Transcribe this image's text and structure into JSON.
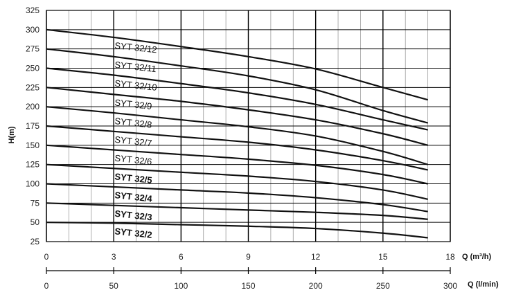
{
  "chart_data": {
    "type": "line",
    "ylabel": "H(m)",
    "xlabel": "Q (m³/h)",
    "x2label": "Q (l/min)",
    "ylim": [
      25,
      325
    ],
    "xlim": [
      0,
      18
    ],
    "x2lim": [
      0,
      300
    ],
    "yticks": [
      "25",
      "50",
      "75",
      "100",
      "125",
      "150",
      "175",
      "200",
      "225",
      "250",
      "275",
      "300",
      "325"
    ],
    "xticks": [
      "0",
      "3",
      "6",
      "9",
      "12",
      "15",
      "18"
    ],
    "x2ticks": [
      "0",
      "50",
      "100",
      "150",
      "200",
      "250",
      "300"
    ],
    "grid": true,
    "series": [
      {
        "name": "SYT 32/12",
        "bold": false,
        "x": [
          0,
          3,
          6,
          9,
          12,
          15,
          17
        ],
        "y": [
          300,
          290,
          278,
          265,
          249,
          225,
          209
        ]
      },
      {
        "name": "SYT 32/11",
        "bold": false,
        "x": [
          0,
          3,
          6,
          9,
          12,
          15,
          17
        ],
        "y": [
          275,
          265,
          253,
          240,
          222,
          195,
          179
        ]
      },
      {
        "name": "SYT 32/10",
        "bold": false,
        "x": [
          0,
          3,
          6,
          9,
          12,
          15,
          17
        ],
        "y": [
          250,
          241,
          230,
          218,
          203,
          183,
          170
        ]
      },
      {
        "name": "SYT 32/9",
        "bold": false,
        "x": [
          0,
          3,
          6,
          9,
          12,
          15,
          17
        ],
        "y": [
          225,
          216,
          207,
          196,
          183,
          165,
          150
        ]
      },
      {
        "name": "SYT 32/8",
        "bold": false,
        "x": [
          0,
          3,
          6,
          9,
          12,
          15,
          17
        ],
        "y": [
          200,
          192,
          183,
          174,
          162,
          142,
          125
        ]
      },
      {
        "name": "SYT 32/7",
        "bold": false,
        "x": [
          0,
          3,
          6,
          9,
          12,
          15,
          17
        ],
        "y": [
          175,
          168,
          161,
          154,
          144,
          130,
          118
        ]
      },
      {
        "name": "SYT 32/6",
        "bold": false,
        "x": [
          0,
          3,
          6,
          9,
          12,
          15,
          17
        ],
        "y": [
          150,
          144,
          138,
          132,
          124,
          112,
          100
        ]
      },
      {
        "name": "SYT 32/5",
        "bold": true,
        "x": [
          0,
          3,
          6,
          9,
          12,
          15,
          17
        ],
        "y": [
          125,
          120,
          115,
          110,
          103,
          92,
          80
        ]
      },
      {
        "name": "SYT 32/4",
        "bold": true,
        "x": [
          0,
          3,
          6,
          9,
          12,
          15,
          17
        ],
        "y": [
          100,
          96,
          92,
          88,
          82,
          73,
          64
        ]
      },
      {
        "name": "SYT 32/3",
        "bold": true,
        "x": [
          0,
          3,
          6,
          9,
          12,
          15,
          17
        ],
        "y": [
          75,
          72,
          69,
          66,
          63,
          59,
          54
        ]
      },
      {
        "name": "SYT 32/2",
        "bold": true,
        "x": [
          0,
          3,
          6,
          9,
          12,
          15,
          17
        ],
        "y": [
          50,
          49,
          47,
          45,
          42,
          36,
          30
        ]
      }
    ],
    "label_x": 3
  }
}
